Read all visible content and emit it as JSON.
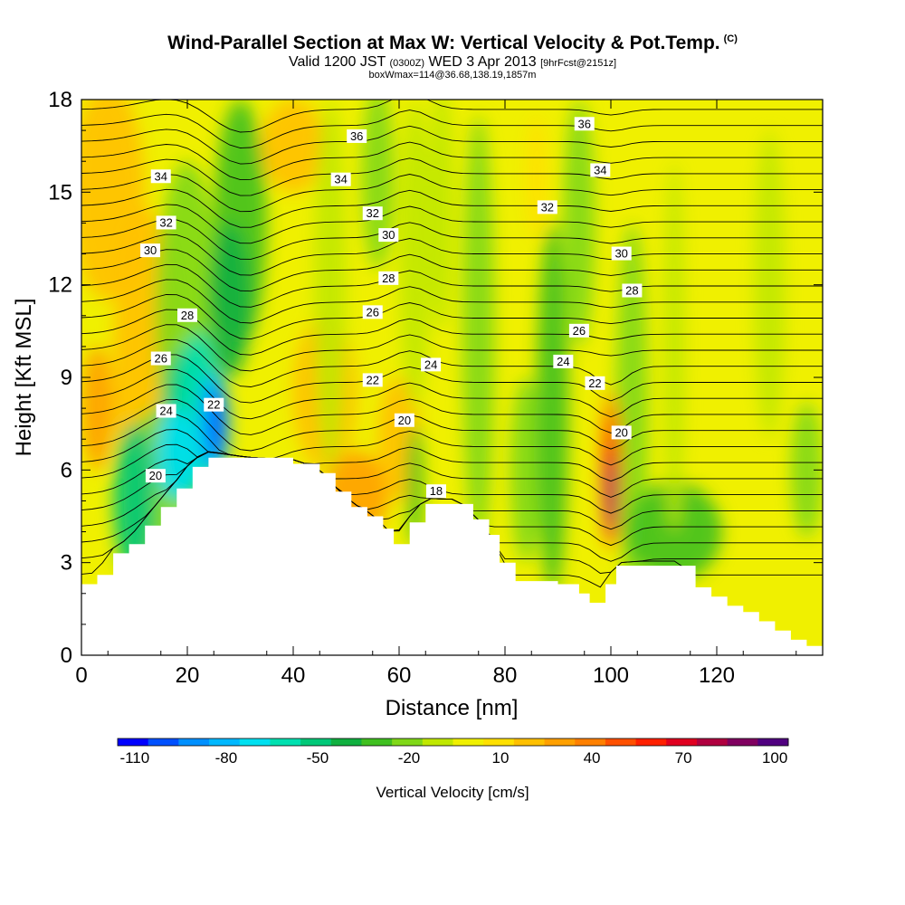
{
  "header": {
    "title": "Wind-Parallel Section at Max W: Vertical Velocity & Pot.Temp.",
    "title_mark": "(C)",
    "sub_valid": "Valid 1200 JST",
    "sub_utc": "(0300Z)",
    "sub_date": "WED 3 Apr 2013",
    "sub_fcst": "[9hrFcst@2151z]",
    "line3": "boxWmax=114@36.68,138.19,1857m"
  },
  "chart_data": {
    "type": "heatmap",
    "xlabel": "Distance [nm]",
    "ylabel": "Height [Kft MSL]",
    "xlim": [
      0,
      140
    ],
    "ylim": [
      0,
      18
    ],
    "x_ticks": [
      0,
      20,
      40,
      60,
      80,
      100,
      120
    ],
    "y_ticks": [
      0,
      3,
      6,
      9,
      12,
      15,
      18
    ],
    "colorbar": {
      "label": "Vertical Velocity [cm/s]",
      "tick_labels": [
        "-110",
        "-80",
        "-50",
        "-20",
        "10",
        "40",
        "70",
        "100"
      ],
      "colors": [
        "#0000ff",
        "#0050ff",
        "#0090ff",
        "#00b8ff",
        "#00e0f0",
        "#00e0b0",
        "#00c878",
        "#10b040",
        "#40c020",
        "#80d818",
        "#c0e800",
        "#f0f000",
        "#ffe000",
        "#ffc000",
        "#ffa000",
        "#ff8000",
        "#ff5000",
        "#ff2000",
        "#e00020",
        "#b00040",
        "#800060",
        "#500080"
      ]
    },
    "potential_temperature_contours": [
      {
        "label": "20",
        "positions": [
          [
            14,
            5.8
          ],
          [
            61,
            7.6
          ],
          [
            102,
            7.2
          ]
        ]
      },
      {
        "label": "22",
        "positions": [
          [
            25,
            8.1
          ],
          [
            55,
            8.9
          ],
          [
            97,
            8.8
          ]
        ]
      },
      {
        "label": "24",
        "positions": [
          [
            16,
            7.9
          ],
          [
            66,
            9.4
          ],
          [
            91,
            9.5
          ]
        ]
      },
      {
        "label": "26",
        "positions": [
          [
            15,
            9.6
          ],
          [
            55,
            11.1
          ],
          [
            94,
            10.5
          ]
        ]
      },
      {
        "label": "28",
        "positions": [
          [
            20,
            11.0
          ],
          [
            58,
            12.2
          ],
          [
            104,
            11.8
          ]
        ]
      },
      {
        "label": "30",
        "positions": [
          [
            13,
            13.1
          ],
          [
            58,
            13.6
          ],
          [
            102,
            13.0
          ]
        ]
      },
      {
        "label": "32",
        "positions": [
          [
            16,
            14.0
          ],
          [
            55,
            14.3
          ],
          [
            88,
            14.5
          ]
        ]
      },
      {
        "label": "34",
        "positions": [
          [
            15,
            15.5
          ],
          [
            49,
            15.4
          ],
          [
            98,
            15.7
          ]
        ]
      },
      {
        "label": "36",
        "positions": [
          [
            52,
            16.8
          ],
          [
            95,
            17.2
          ]
        ]
      },
      {
        "label": "18",
        "positions": [
          [
            67,
            5.3
          ]
        ]
      }
    ],
    "terrain_profile": [
      [
        0,
        2.3
      ],
      [
        3,
        2.6
      ],
      [
        6,
        3.3
      ],
      [
        9,
        3.6
      ],
      [
        12,
        4.2
      ],
      [
        15,
        4.8
      ],
      [
        18,
        5.4
      ],
      [
        21,
        6.1
      ],
      [
        24,
        6.4
      ],
      [
        27,
        6.4
      ],
      [
        40,
        6.2
      ],
      [
        45,
        5.9
      ],
      [
        48,
        5.3
      ],
      [
        51,
        4.8
      ],
      [
        54,
        4.5
      ],
      [
        57,
        4.1
      ],
      [
        59,
        3.6
      ],
      [
        62,
        4.3
      ],
      [
        65,
        4.9
      ],
      [
        71,
        4.9
      ],
      [
        74,
        4.4
      ],
      [
        77,
        3.9
      ],
      [
        79,
        3.0
      ],
      [
        82,
        2.4
      ],
      [
        90,
        2.3
      ],
      [
        94,
        2.0
      ],
      [
        96,
        1.7
      ],
      [
        99,
        2.3
      ],
      [
        101,
        2.9
      ],
      [
        113,
        2.9
      ],
      [
        116,
        2.2
      ],
      [
        119,
        1.9
      ],
      [
        122,
        1.6
      ],
      [
        125,
        1.4
      ],
      [
        128,
        1.1
      ],
      [
        131,
        0.8
      ],
      [
        134,
        0.5
      ],
      [
        137,
        0.3
      ],
      [
        140,
        0.3
      ]
    ],
    "updraft_max": {
      "x": 100,
      "y": 5.2,
      "value": 114
    },
    "downdraft_min": {
      "x": 25,
      "y": 7.3,
      "value": -110
    }
  }
}
